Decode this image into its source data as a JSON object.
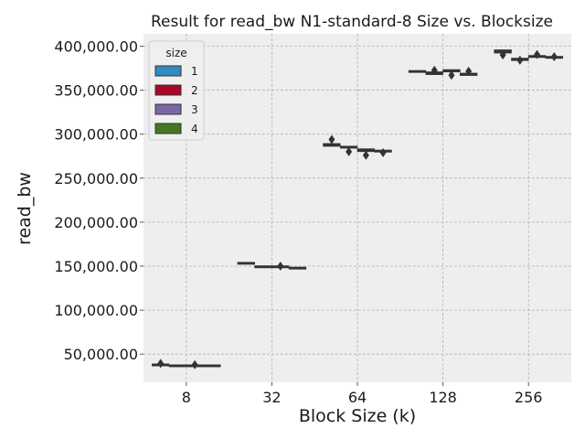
{
  "chart_data": {
    "type": "box",
    "title": "Result for read_bw N1-standard-8 Size vs. Blocksize",
    "xlabel": "Block Size (k)",
    "ylabel": "read_bw",
    "categories": [
      "8",
      "32",
      "64",
      "128",
      "256"
    ],
    "yticks": [
      "50,000.00",
      "100,000.00",
      "150,000.00",
      "200,000.00",
      "250,000.00",
      "300,000.00",
      "350,000.00",
      "400,000.00"
    ],
    "ytick_values": [
      50000,
      100000,
      150000,
      200000,
      250000,
      300000,
      350000,
      400000
    ],
    "ylim": [
      18000,
      414000
    ],
    "grid": true,
    "legend": {
      "title": "size",
      "position": "upper-left"
    },
    "series": [
      {
        "name": "1",
        "color": "#348ABD",
        "values": [
          {
            "med": 38000,
            "q1": 37500,
            "q3": 38500,
            "fliers": [
              39500
            ]
          },
          {
            "med": 153500,
            "q1": 153000,
            "q3": 154000,
            "fliers": []
          },
          {
            "med": 287500,
            "q1": 286500,
            "q3": 289000,
            "fliers": [
              294000
            ]
          },
          {
            "med": 371000,
            "q1": 370500,
            "q3": 372000,
            "fliers": []
          },
          {
            "med": 393500,
            "q1": 392500,
            "q3": 395500,
            "fliers": [
              390000
            ]
          }
        ]
      },
      {
        "name": "2",
        "color": "#A60628",
        "values": [
          {
            "med": 37000,
            "q1": 36500,
            "q3": 37500,
            "fliers": []
          },
          {
            "med": 149500,
            "q1": 149000,
            "q3": 150000,
            "fliers": []
          },
          {
            "med": 285000,
            "q1": 284500,
            "q3": 286000,
            "fliers": [
              280000
            ]
          },
          {
            "med": 369000,
            "q1": 368000,
            "q3": 370500,
            "fliers": [
              372500
            ]
          },
          {
            "med": 385000,
            "q1": 384000,
            "q3": 386000,
            "fliers": [
              384000
            ]
          }
        ]
      },
      {
        "name": "3",
        "color": "#7A68A6",
        "values": [
          {
            "med": 37000,
            "q1": 36500,
            "q3": 37500,
            "fliers": [
              38000
            ]
          },
          {
            "med": 149500,
            "q1": 149000,
            "q3": 150000,
            "fliers": [
              150000
            ]
          },
          {
            "med": 281500,
            "q1": 280500,
            "q3": 283000,
            "fliers": [
              276000
            ]
          },
          {
            "med": 372000,
            "q1": 371000,
            "q3": 373000,
            "fliers": [
              367000
            ]
          },
          {
            "med": 388500,
            "q1": 388000,
            "q3": 389000,
            "fliers": [
              390500
            ]
          }
        ]
      },
      {
        "name": "4",
        "color": "#467821",
        "values": [
          {
            "med": 37000,
            "q1": 36500,
            "q3": 37500,
            "fliers": []
          },
          {
            "med": 148000,
            "q1": 147500,
            "q3": 148500,
            "fliers": []
          },
          {
            "med": 281000,
            "q1": 280500,
            "q3": 281500,
            "fliers": [
              279000
            ]
          },
          {
            "med": 368000,
            "q1": 367000,
            "q3": 369000,
            "fliers": [
              371500
            ]
          },
          {
            "med": 387500,
            "q1": 387000,
            "q3": 388000,
            "fliers": [
              388000
            ]
          }
        ]
      }
    ]
  }
}
